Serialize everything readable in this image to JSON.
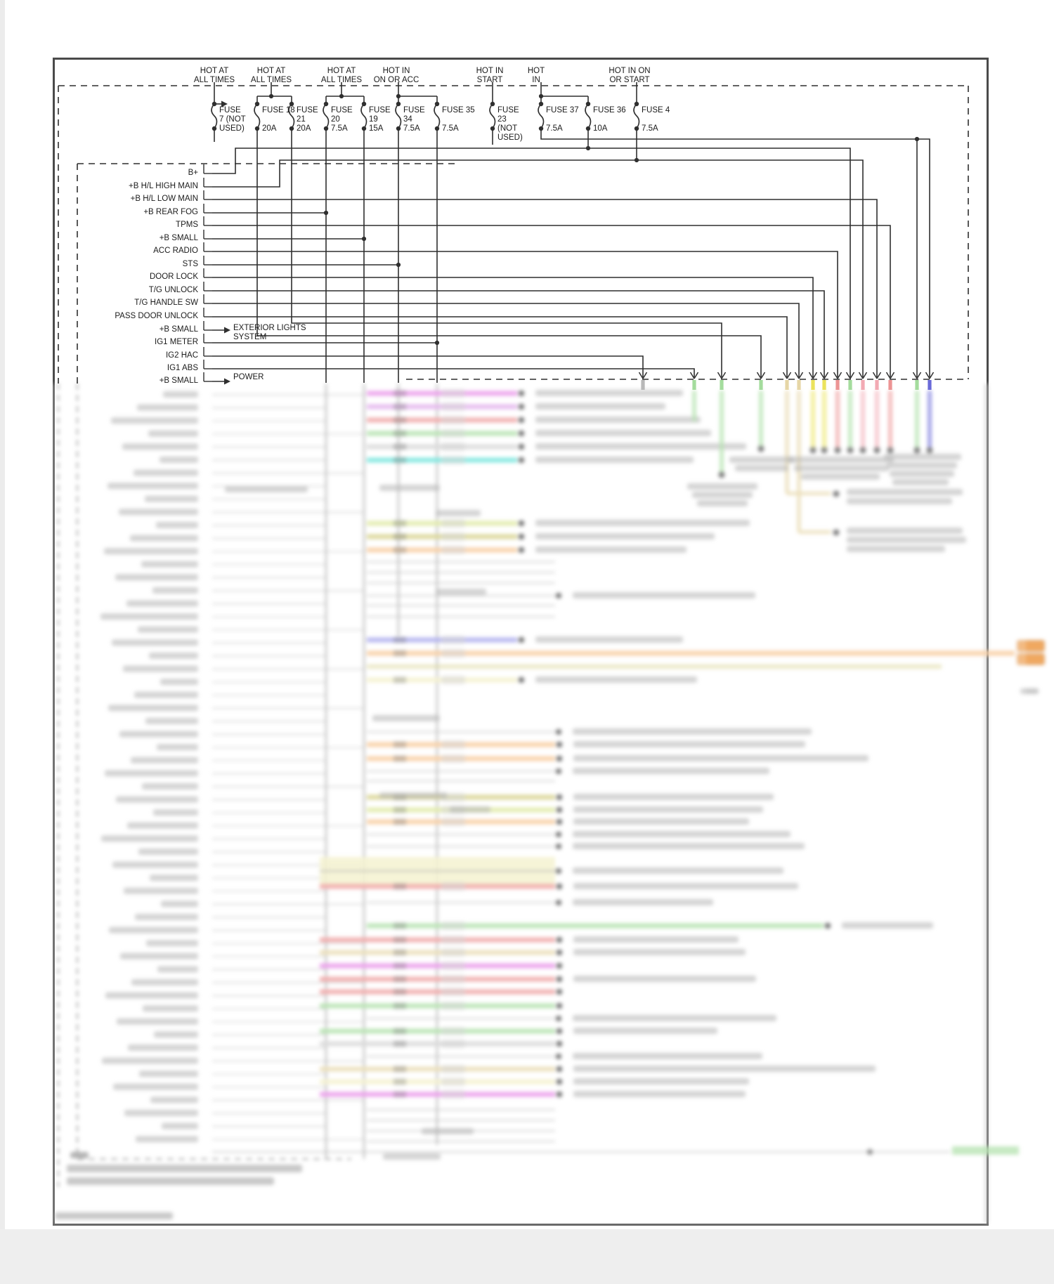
{
  "diagram_title": "",
  "power_headers": [
    {
      "label": "HOT AT\nALL TIMES"
    },
    {
      "label": "HOT AT\nALL TIMES"
    },
    {
      "label": "HOT AT\nALL TIMES"
    },
    {
      "label": "HOT IN\nON OR ACC"
    },
    {
      "label": "HOT IN\nSTART"
    },
    {
      "label": "HOT\nIN"
    },
    {
      "label": "HOT IN ON\nOR START"
    }
  ],
  "fuses": [
    {
      "name": "FUSE\n7 (NOT\nUSED)",
      "amp": ""
    },
    {
      "name": "FUSE 18",
      "amp": "20A"
    },
    {
      "name": "FUSE\n21",
      "amp": "20A"
    },
    {
      "name": "FUSE\n20",
      "amp": "7.5A"
    },
    {
      "name": "FUSE\n19",
      "amp": "15A"
    },
    {
      "name": "FUSE\n34",
      "amp": "7.5A"
    },
    {
      "name": "FUSE 35",
      "amp": "7.5A"
    },
    {
      "name": "FUSE\n23\n(NOT\nUSED)",
      "amp": ""
    },
    {
      "name": "FUSE 37",
      "amp": "7.5A"
    },
    {
      "name": "FUSE 36",
      "amp": "10A"
    },
    {
      "name": "FUSE 4",
      "amp": "7.5A"
    }
  ],
  "left_pins": [
    "B+",
    "+B H/L HIGH MAIN",
    "+B H/L LOW MAIN",
    "+B REAR FOG",
    "TPMS",
    "+B SMALL",
    "ACC RADIO",
    "STS",
    "DOOR LOCK",
    "T/G UNLOCK",
    "T/G HANDLE SW",
    "PASS DOOR UNLOCK",
    "+B SMALL",
    "IG1 METER",
    "IG2 HAC",
    "IG1 ABS",
    "+B SMALL"
  ],
  "annotations": {
    "exterior_lights": "EXTERIOR LIGHTS\nSYSTEM",
    "power_system": "POWER"
  },
  "wire_colors": {
    "magenta": "#e583e5",
    "violet": "#dda3e8",
    "red": "#ec9494",
    "pink": "#f2aab4",
    "green": "#a4dc9d",
    "cyan": "#5adfd6",
    "yellow_green": "#d9e692",
    "olive": "#cfca7a",
    "orange": "#f6c28c",
    "periwinkle": "#9c9cea",
    "pale_yellow": "#f2eec3",
    "tan": "#e6d6a6",
    "yellow": "#ebe35c",
    "blue": "#6a6ad8",
    "gray": "#c9c9c9",
    "line": "#2f2f2f"
  }
}
